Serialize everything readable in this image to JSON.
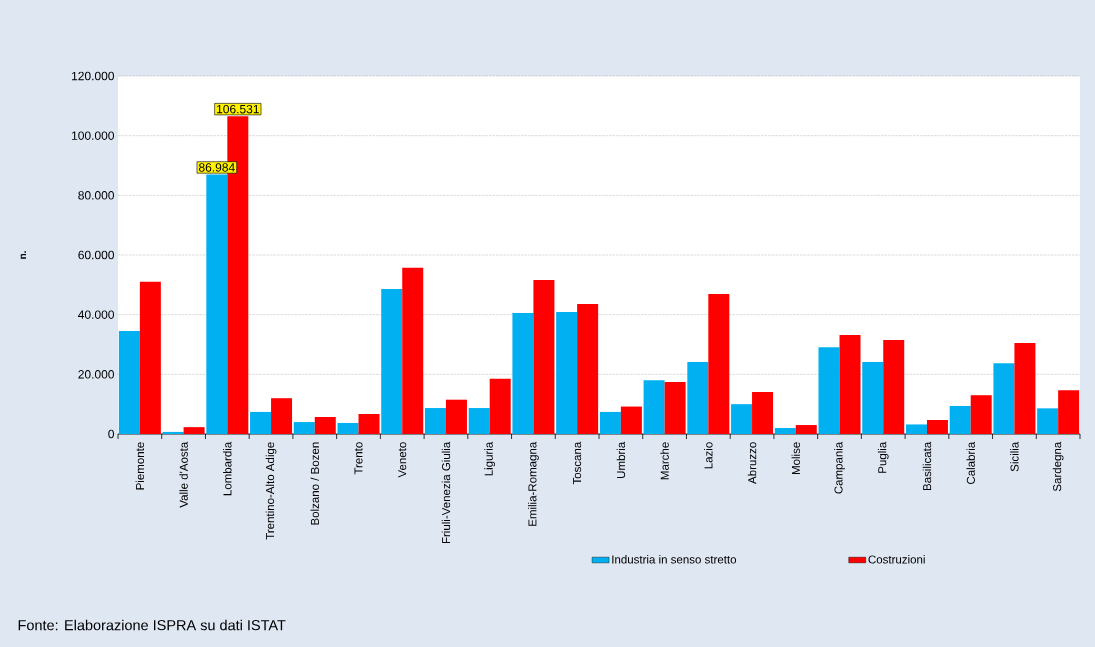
{
  "chart_data": {
    "type": "bar",
    "ylabel": "n.",
    "categories": [
      "Piemonte",
      "Valle d'Aosta",
      "Lombardia",
      "Trentino-Alto Adige",
      "Bolzano / Bozen",
      "Trento",
      "Veneto",
      "Friuli-Venezia Giulia",
      "Liguria",
      "Emilia-Romagna",
      "Toscana",
      "Umbria",
      "Marche",
      "Lazio",
      "Abruzzo",
      "Molise",
      "Campania",
      "Puglia",
      "Basilicata",
      "Calabria",
      "Sicilia",
      "Sardegna"
    ],
    "series": [
      {
        "name": "Industria in senso stretto",
        "color": "#00b0f0",
        "values": [
          34500,
          700,
          86984,
          7400,
          4000,
          3700,
          48600,
          8700,
          8700,
          40600,
          40900,
          7400,
          18000,
          24100,
          10000,
          2000,
          29100,
          24100,
          3200,
          9400,
          23700,
          8600
        ],
        "value_labels": [
          null,
          null,
          "86.984",
          null,
          null,
          null,
          null,
          null,
          null,
          null,
          null,
          null,
          null,
          null,
          null,
          null,
          null,
          null,
          null,
          null,
          null,
          null
        ]
      },
      {
        "name": "Costruzioni",
        "color": "#ff0000",
        "values": [
          51000,
          2300,
          106531,
          12000,
          5700,
          6700,
          55700,
          11500,
          18500,
          51600,
          43600,
          9200,
          17400,
          46900,
          14100,
          3000,
          33200,
          31500,
          4700,
          13000,
          30500,
          14700
        ],
        "value_labels": [
          null,
          null,
          "106.531",
          null,
          null,
          null,
          null,
          null,
          null,
          null,
          null,
          null,
          null,
          null,
          null,
          null,
          null,
          null,
          null,
          null,
          null,
          null
        ]
      }
    ],
    "ylim": [
      0,
      120000
    ],
    "yticks": [
      {
        "value": 0,
        "label": "0"
      },
      {
        "value": 20000,
        "label": "20.000"
      },
      {
        "value": 40000,
        "label": "40.000"
      },
      {
        "value": 60000,
        "label": "60.000"
      },
      {
        "value": 80000,
        "label": "80.000"
      },
      {
        "value": 100000,
        "label": "100.000"
      },
      {
        "value": 120000,
        "label": "120.000"
      }
    ],
    "grid": "y",
    "legend": "bottom",
    "annotations": [
      "Fonte: Elaborazione ISPRA su dati ISTAT"
    ]
  }
}
